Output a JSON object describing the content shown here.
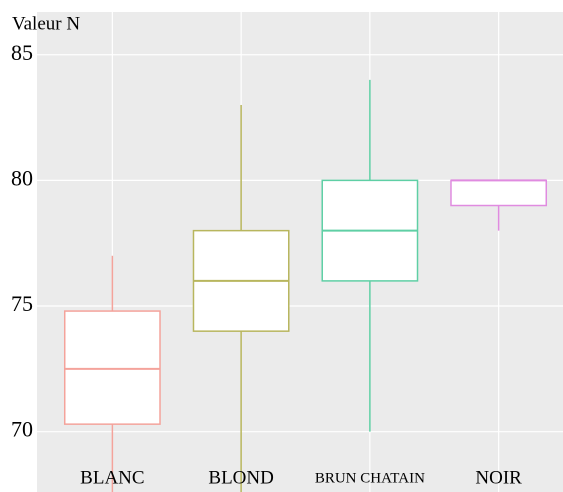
{
  "chart_data": {
    "type": "box",
    "y_label": "Valeur N",
    "categories": [
      "BLANC",
      "BLOND",
      "BRUN CHATAIN",
      "NOIR"
    ],
    "series": [
      {
        "name": "BLANC",
        "color": "#f4a39b",
        "min": 67,
        "q1": 70.3,
        "median": 72.5,
        "q3": 74.8,
        "max": 77
      },
      {
        "name": "BLOND",
        "color": "#b8b65e",
        "min": 67,
        "q1": 74,
        "median": 76,
        "q3": 78,
        "max": 83
      },
      {
        "name": "BRUN CHATAIN",
        "color": "#5fcfa5",
        "min": 70,
        "q1": 76,
        "median": 78,
        "q3": 80,
        "max": 84
      },
      {
        "name": "NOIR",
        "color": "#e08be0",
        "min": 78,
        "q1": 79,
        "median": 80,
        "q3": 80,
        "max": 80
      }
    ],
    "ylim": [
      67.6,
      86.7
    ],
    "yticks": [
      70,
      75,
      80,
      85
    ],
    "grid": true
  }
}
